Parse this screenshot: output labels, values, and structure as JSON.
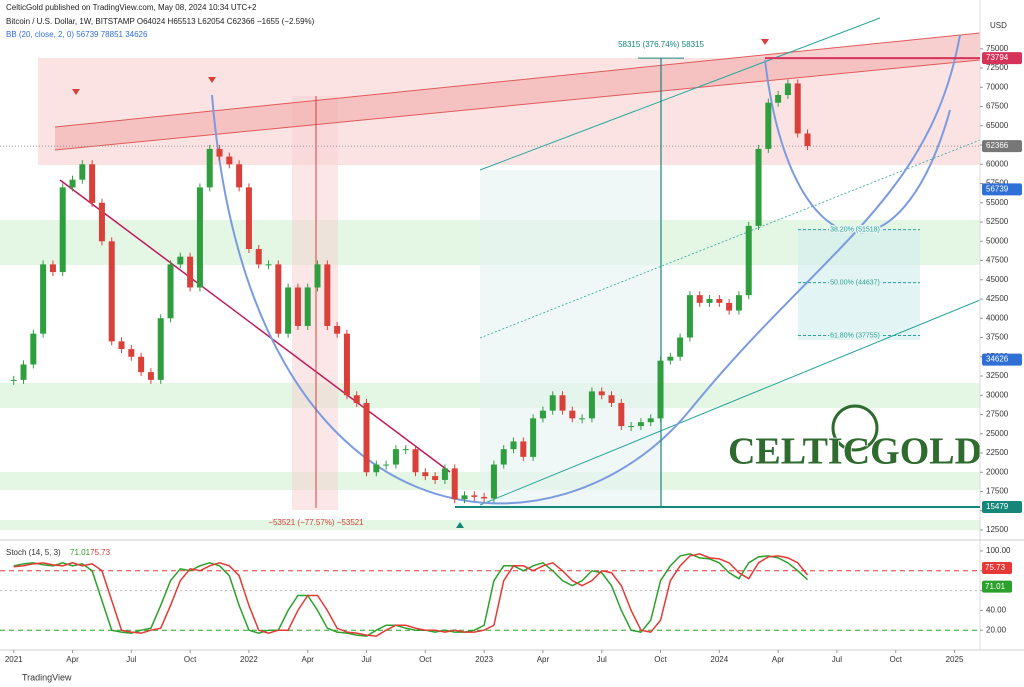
{
  "header": {
    "publisher": "CelticGold published on TradingView.com, May 08, 2024 10:34 UTC+2",
    "footer": "TradingView",
    "logo": "CELTICGOLD"
  },
  "chart_data": [
    {
      "type": "candlestick",
      "title": "Bitcoin / U.S. Dollar, 1W, BITSTAMP O64024 H65513 L62054 C62366 −1655 (−2.59%)",
      "subtitle": "BB (20, close, 2, 0) 56739 78851 34626",
      "y_axis_label": "USD",
      "x": [
        0,
        0.5,
        1,
        1.5,
        2,
        2.5,
        3,
        3.5,
        4,
        4.5,
        5,
        5.5,
        6,
        6.5,
        7,
        7.5,
        8,
        8.5,
        9,
        9.5,
        10,
        10.5,
        11,
        11.5,
        12,
        12.5,
        13,
        13.5,
        14,
        14.5,
        15,
        15.5,
        16,
        16.5,
        17,
        17.5,
        18,
        18.5,
        19,
        19.5,
        20,
        20.5,
        21,
        21.5,
        22,
        22.5,
        23,
        23.5,
        24,
        24.5,
        25,
        25.5,
        26,
        26.5,
        27,
        27.5,
        28,
        28.5,
        29,
        29.5,
        30,
        30.5,
        31,
        31.5,
        32,
        32.5,
        33,
        33.5,
        34,
        34.5,
        35,
        35.5,
        36,
        36.5,
        37,
        37.5,
        38,
        38.5,
        39,
        39.5,
        40,
        40.5
      ],
      "series": [
        {
          "color_up": "#2e9e3e",
          "color_down": "#d9403a",
          "values": [
            32000,
            34000,
            38000,
            47000,
            46000,
            57000,
            58000,
            60000,
            55000,
            50000,
            37000,
            36000,
            35000,
            33000,
            32000,
            40000,
            47000,
            48000,
            44000,
            57000,
            62000,
            61000,
            60000,
            57000,
            49000,
            47000,
            47000,
            38000,
            44000,
            39000,
            44000,
            47000,
            39000,
            38000,
            30000,
            29000,
            20000,
            21000,
            21000,
            23000,
            23000,
            20000,
            19500,
            19000,
            20500,
            16500,
            17000,
            16800,
            16600,
            21000,
            23000,
            24000,
            22000,
            27000,
            28000,
            30000,
            28000,
            27000,
            27000,
            30500,
            30000,
            29000,
            26000,
            26000,
            26500,
            27000,
            34500,
            35000,
            37500,
            43000,
            42000,
            42500,
            42000,
            41000,
            43000,
            52000,
            62000,
            68000,
            69000,
            70500,
            64000,
            62366
          ]
        }
      ],
      "xlim": [
        -0.7,
        49.3
      ],
      "xticks": [
        {
          "value": 0,
          "label": "2021"
        },
        {
          "value": 3,
          "label": "Apr"
        },
        {
          "value": 6,
          "label": "Jul"
        },
        {
          "value": 9,
          "label": "Oct"
        },
        {
          "value": 12,
          "label": "2022"
        },
        {
          "value": 15,
          "label": "Apr"
        },
        {
          "value": 18,
          "label": "Jul"
        },
        {
          "value": 21,
          "label": "Oct"
        },
        {
          "value": 24,
          "label": "2023"
        },
        {
          "value": 27,
          "label": "Apr"
        },
        {
          "value": 30,
          "label": "Jul"
        },
        {
          "value": 33,
          "label": "Oct"
        },
        {
          "value": 36,
          "label": "2024"
        },
        {
          "value": 39,
          "label": "Apr"
        },
        {
          "value": 42,
          "label": "Jul"
        },
        {
          "value": 45,
          "label": "Oct"
        },
        {
          "value": 48,
          "label": "2025"
        }
      ],
      "ylim": [
        11200,
        79000
      ],
      "yticks": [
        12500,
        15000,
        17500,
        20000,
        22500,
        25000,
        27500,
        30000,
        32500,
        35000,
        37500,
        40000,
        42500,
        45000,
        47500,
        50000,
        52500,
        55000,
        57500,
        60000,
        62500,
        65000,
        67500,
        70000,
        72500,
        75000
      ],
      "price_labels": [
        {
          "value": 73794,
          "color": "#d6335a"
        },
        {
          "value": 62366,
          "color": "#777777"
        },
        {
          "value": 56739,
          "color": "#2f6fd6"
        },
        {
          "value": 34626,
          "color": "#2f6fd6"
        },
        {
          "value": 15479,
          "color": "#14877a"
        }
      ],
      "fib_levels": [
        {
          "label": "38.20% (51518)",
          "value": 51518
        },
        {
          "label": "50.00% (44637)",
          "value": 44637
        },
        {
          "label": "61.80% (37755)",
          "value": 37755
        }
      ],
      "annotations": [
        "58315 (376.74%) 58315",
        "−53521 (−77.57%) −53521"
      ]
    },
    {
      "type": "line",
      "title": "Stoch (14, 5, 3)",
      "series": [
        {
          "color": "#2ca02c",
          "values": [
            85,
            87,
            88,
            86,
            85,
            88,
            85,
            87,
            80,
            50,
            20,
            18,
            17,
            20,
            22,
            45,
            70,
            82,
            80,
            85,
            88,
            85,
            75,
            45,
            20,
            17,
            20,
            20,
            40,
            55,
            55,
            40,
            22,
            18,
            17,
            15,
            14,
            20,
            25,
            25,
            22,
            20,
            20,
            18,
            20,
            18,
            18,
            20,
            25,
            70,
            85,
            85,
            80,
            85,
            88,
            80,
            70,
            65,
            70,
            80,
            78,
            65,
            40,
            20,
            18,
            30,
            70,
            85,
            95,
            97,
            93,
            92,
            88,
            78,
            72,
            88,
            94,
            95,
            93,
            88,
            80,
            71.01
          ]
        },
        {
          "color": "#e53935",
          "values": [
            84,
            85,
            87,
            88,
            86,
            85,
            88,
            85,
            87,
            80,
            50,
            20,
            18,
            17,
            20,
            22,
            45,
            70,
            82,
            80,
            85,
            88,
            85,
            75,
            45,
            20,
            17,
            20,
            20,
            40,
            55,
            55,
            40,
            22,
            18,
            17,
            15,
            14,
            20,
            25,
            25,
            22,
            20,
            20,
            18,
            20,
            18,
            18,
            20,
            25,
            70,
            85,
            85,
            80,
            85,
            88,
            80,
            70,
            65,
            70,
            80,
            78,
            65,
            40,
            20,
            18,
            30,
            70,
            85,
            95,
            97,
            93,
            92,
            88,
            78,
            72,
            88,
            94,
            95,
            93,
            88,
            75.73
          ]
        }
      ],
      "ylim": [
        0,
        106
      ],
      "yticks": [
        {
          "value": 20,
          "label": "20.00"
        },
        {
          "value": 40,
          "label": "40.00"
        },
        {
          "value": 60,
          "label": "60.00"
        },
        {
          "value": 80,
          "label": "80.00"
        },
        {
          "value": 100,
          "label": "100.00"
        }
      ],
      "levels": [
        {
          "value": 80,
          "color": "#e53935"
        },
        {
          "value": 20,
          "color": "#2ca02c"
        }
      ]
    }
  ]
}
